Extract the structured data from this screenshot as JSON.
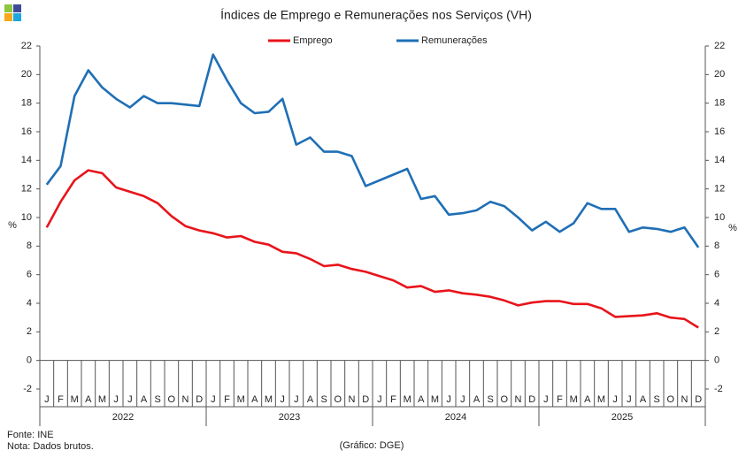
{
  "chart_data": {
    "type": "line",
    "title": "Índices de Emprego e Remunerações nos Serviços (VH)",
    "categories": [
      "J",
      "F",
      "M",
      "A",
      "M",
      "J",
      "J",
      "A",
      "S",
      "O",
      "N",
      "D",
      "J",
      "F",
      "M",
      "A",
      "M",
      "J",
      "J",
      "A",
      "S",
      "O",
      "N",
      "D",
      "J",
      "F",
      "M",
      "A",
      "M",
      "J",
      "J",
      "A",
      "S",
      "O",
      "N",
      "D",
      "J",
      "F",
      "M",
      "A",
      "M",
      "J",
      "J",
      "A",
      "S",
      "O",
      "N",
      "D"
    ],
    "years": [
      "2022",
      "2023",
      "2024",
      "2025"
    ],
    "series": [
      {
        "name": "Emprego",
        "color": "#e8141b",
        "values": [
          9.3,
          11.1,
          12.6,
          13.3,
          13.1,
          12.1,
          11.8,
          11.5,
          11.0,
          10.1,
          9.4,
          9.1,
          8.9,
          8.6,
          8.7,
          8.3,
          8.1,
          7.6,
          7.5,
          7.1,
          6.6,
          6.7,
          6.4,
          6.2,
          5.9,
          5.6,
          5.1,
          5.2,
          4.8,
          4.9,
          4.7,
          4.6,
          4.45,
          4.2,
          3.85,
          4.05,
          4.15,
          4.15,
          3.95,
          3.95,
          3.65,
          3.05,
          3.1,
          3.15,
          3.3,
          3.0,
          2.9,
          2.3
        ]
      },
      {
        "name": "Remunerações",
        "color": "#1f6fb5",
        "values": [
          12.3,
          13.6,
          18.5,
          20.3,
          19.1,
          18.3,
          17.7,
          18.5,
          18.0,
          18.0,
          17.9,
          17.8,
          21.4,
          19.6,
          18.0,
          17.3,
          17.4,
          18.3,
          15.1,
          15.6,
          14.6,
          14.6,
          14.3,
          12.2,
          12.6,
          13.0,
          13.4,
          11.3,
          11.5,
          10.2,
          10.3,
          10.5,
          11.1,
          10.8,
          10.0,
          9.1,
          9.7,
          9.0,
          9.6,
          11.0,
          10.6,
          10.6,
          9.0,
          9.3,
          9.2,
          9.0,
          9.3,
          7.9
        ]
      }
    ],
    "ylim": [
      -2,
      22
    ],
    "yticks": [
      -2,
      0,
      2,
      4,
      6,
      8,
      10,
      12,
      14,
      16,
      18,
      20,
      22
    ],
    "y2lim": [
      -2,
      22
    ],
    "y2ticks": [
      -2,
      0,
      2,
      4,
      6,
      8,
      10,
      12,
      14,
      16,
      18,
      20,
      22
    ],
    "y_label": "%",
    "y2_label": "%",
    "source": "Fonte: INE",
    "note": "Nota: Dados brutos.",
    "credit": "(Gráfico: DGE)"
  }
}
